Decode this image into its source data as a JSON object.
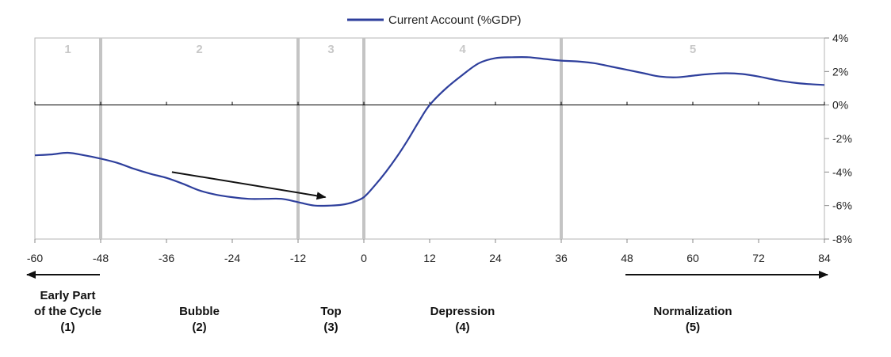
{
  "chart_data": {
    "type": "line",
    "legend": {
      "label": "Current Account (%GDP)",
      "position": "top-center"
    },
    "x_ticks": [
      -60,
      -48,
      -36,
      -24,
      -12,
      0,
      12,
      24,
      36,
      48,
      60,
      72,
      84
    ],
    "y_ticks": [
      4,
      2,
      0,
      -2,
      -4,
      -6,
      -8
    ],
    "y_tick_labels": [
      "4%",
      "2%",
      "0%",
      "-2%",
      "-4%",
      "-6%",
      "-8%"
    ],
    "xlim": [
      -60,
      84
    ],
    "ylim": [
      -8,
      4
    ],
    "phase_dividers": [
      -48,
      -12,
      0,
      36
    ],
    "phase_numbers": [
      {
        "label": "1",
        "x": -54
      },
      {
        "label": "2",
        "x": -30
      },
      {
        "label": "3",
        "x": -6
      },
      {
        "label": "4",
        "x": 18
      },
      {
        "label": "5",
        "x": 60
      }
    ],
    "phase_labels": [
      {
        "lines": [
          "Early Part",
          "of the Cycle",
          "(1)"
        ],
        "x": -54
      },
      {
        "lines": [
          "Bubble",
          "(2)"
        ],
        "x": -30
      },
      {
        "lines": [
          "Top",
          "(3)"
        ],
        "x": -6
      },
      {
        "lines": [
          "Depression",
          "(4)"
        ],
        "x": 18
      },
      {
        "lines": [
          "Normalization",
          "(5)"
        ],
        "x": 60
      }
    ],
    "series": [
      {
        "name": "Current Account (%GDP)",
        "color": "#2e3f9c",
        "x": [
          -60,
          -57,
          -54,
          -51,
          -48,
          -45,
          -42,
          -39,
          -36,
          -33,
          -30,
          -27,
          -24,
          -21,
          -18,
          -15,
          -12,
          -9,
          -6,
          -4,
          -2,
          0,
          2,
          4,
          6,
          8,
          10,
          12,
          15,
          18,
          21,
          24,
          27,
          30,
          33,
          36,
          39,
          42,
          45,
          48,
          51,
          54,
          57,
          60,
          63,
          66,
          69,
          72,
          75,
          78,
          81,
          84
        ],
        "y": [
          -3.0,
          -2.95,
          -2.85,
          -3.0,
          -3.2,
          -3.45,
          -3.8,
          -4.1,
          -4.35,
          -4.7,
          -5.1,
          -5.35,
          -5.5,
          -5.6,
          -5.6,
          -5.6,
          -5.8,
          -6.0,
          -6.0,
          -5.95,
          -5.8,
          -5.5,
          -4.8,
          -4.0,
          -3.1,
          -2.1,
          -1.0,
          0.0,
          1.0,
          1.8,
          2.5,
          2.8,
          2.85,
          2.85,
          2.75,
          2.65,
          2.6,
          2.5,
          2.3,
          2.1,
          1.9,
          1.7,
          1.65,
          1.75,
          1.85,
          1.9,
          1.85,
          1.7,
          1.5,
          1.35,
          1.25,
          1.2
        ]
      }
    ],
    "annotation_arrows": [
      {
        "from": [
          -35,
          -4.0
        ],
        "to": [
          -7,
          -5.5
        ]
      }
    ],
    "bottom_arrows": [
      {
        "from": -60,
        "to": -60,
        "direction": "left"
      },
      {
        "from": 48,
        "to": 84,
        "direction": "right"
      }
    ]
  }
}
